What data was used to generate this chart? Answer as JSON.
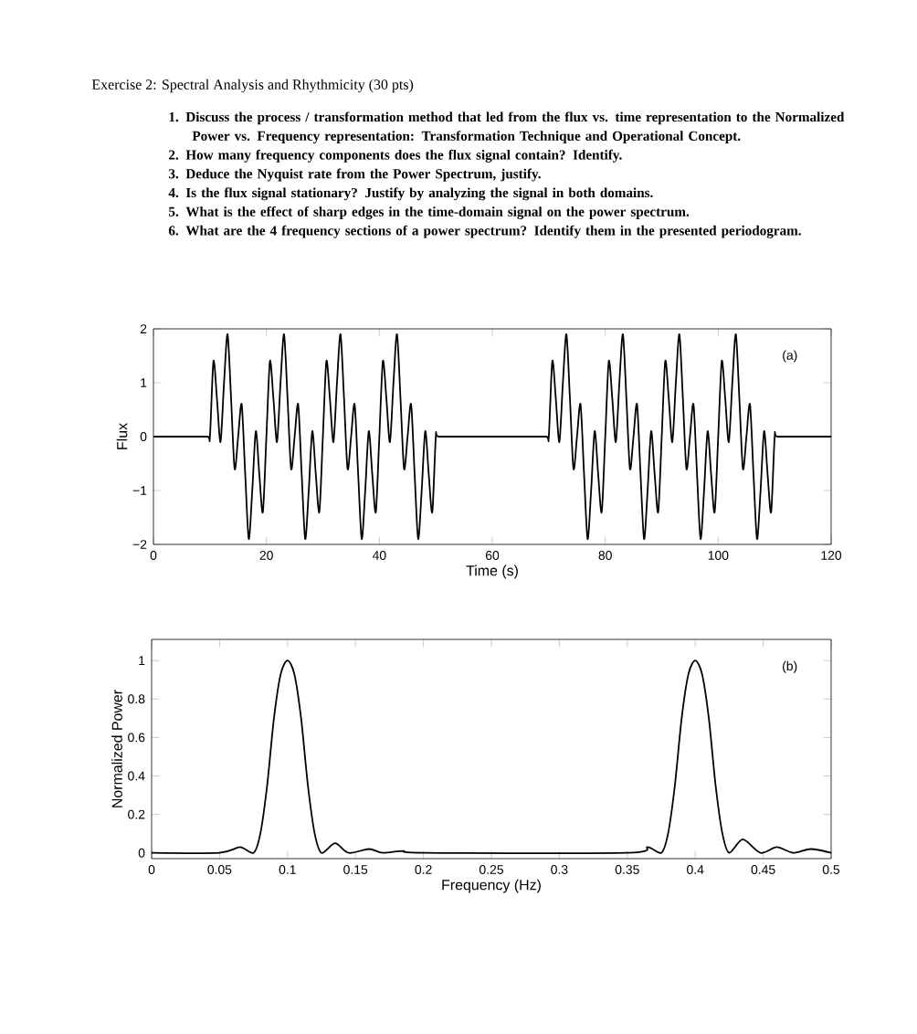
{
  "chart_data": [
    {
      "type": "line",
      "title": "Exercise 2: Spectral Analysis and Rhythmicity (30 pts)",
      "annotations": [
        "1. Discuss the process / transformation method that led from the flux vs. time representation to the Normalized Power vs. Frequency representation: Transformation Technique and Operational Concept.",
        "2. How many frequency components does the flux signal contain? Identify.",
        "3. Deduce the Nyquist rate from the Power Spectrum, justify.",
        "4. Is the flux signal stationary? Justify by analyzing the signal in both domains.",
        "5. What is the effect of sharp edges in the time-domain signal on the power spectrum.",
        "6. What are the 4 frequency sections of a power spectrum? Identify them in the presented periodogram.",
        "(a)"
      ],
      "xlabel": "Time (s)",
      "ylabel": "Flux",
      "color": "#000000",
      "xlim": [
        0,
        120
      ],
      "ylim": [
        -2,
        2
      ],
      "xticks": [
        0,
        20,
        40,
        60,
        80,
        100,
        120
      ],
      "yticks": [
        {
          "value": -2,
          "label": "−2"
        },
        {
          "value": -1,
          "label": "−1"
        },
        0,
        1,
        2
      ],
      "x": [
        0,
        5,
        9.5,
        10,
        10.625,
        11.25,
        11.875,
        12.5,
        13.125,
        13.75,
        14.375,
        15,
        15.625,
        16.25,
        16.875,
        17.5,
        18.125,
        18.75,
        19.375,
        20,
        20.625,
        21.25,
        21.875,
        22.5,
        23.125,
        23.75,
        24.375,
        25,
        25.625,
        26.25,
        26.875,
        27.5,
        28.125,
        28.75,
        29.375,
        30,
        30.625,
        31.25,
        31.875,
        32.5,
        33.125,
        33.75,
        34.375,
        35,
        35.625,
        36.25,
        36.875,
        37.5,
        38.125,
        38.75,
        39.375,
        40,
        40.625,
        41.25,
        41.875,
        42.5,
        43.125,
        43.75,
        44.375,
        45,
        45.625,
        46.25,
        46.875,
        47.5,
        48.125,
        48.75,
        49.375,
        50,
        50.5,
        55,
        60,
        65,
        69.5,
        70,
        70.625,
        71.25,
        71.875,
        72.5,
        73.125,
        73.75,
        74.375,
        75,
        75.625,
        76.25,
        76.875,
        77.5,
        78.125,
        78.75,
        79.375,
        80,
        80.625,
        81.25,
        81.875,
        82.5,
        83.125,
        83.75,
        84.375,
        85,
        85.625,
        86.25,
        86.875,
        87.5,
        88.125,
        88.75,
        89.375,
        90,
        90.625,
        91.25,
        91.875,
        92.5,
        93.125,
        93.75,
        94.375,
        95,
        95.625,
        96.25,
        96.875,
        97.5,
        98.125,
        98.75,
        99.375,
        100,
        100.625,
        101.25,
        101.875,
        102.5,
        103.125,
        103.75,
        104.375,
        105,
        105.625,
        106.25,
        106.875,
        107.5,
        108.125,
        108.75,
        109.375,
        110,
        110.5,
        115,
        120
      ],
      "values": [
        0,
        0,
        0,
        0,
        1.4,
        0.7,
        -0.1,
        1,
        1.9,
        0.7,
        -0.6,
        0,
        0.6,
        -0.7,
        -1.9,
        -1,
        0.1,
        -0.7,
        -1.4,
        0,
        1.4,
        0.7,
        -0.1,
        1,
        1.9,
        0.7,
        -0.6,
        0,
        0.6,
        -0.7,
        -1.9,
        -1,
        0.1,
        -0.7,
        -1.4,
        0,
        1.4,
        0.7,
        -0.1,
        1,
        1.9,
        0.7,
        -0.6,
        0,
        0.6,
        -0.7,
        -1.9,
        -1,
        0.1,
        -0.7,
        -1.4,
        0,
        1.4,
        0.7,
        -0.1,
        1,
        1.9,
        0.7,
        -0.6,
        0,
        0.6,
        -0.7,
        -1.9,
        -1,
        0.1,
        -0.7,
        -1.4,
        0,
        0,
        0,
        0,
        0,
        0,
        0,
        1.4,
        0.7,
        -0.1,
        1,
        1.9,
        0.7,
        -0.6,
        0,
        0.6,
        -0.7,
        -1.9,
        -1,
        0.1,
        -0.7,
        -1.4,
        0,
        1.4,
        0.7,
        -0.1,
        1,
        1.9,
        0.7,
        -0.6,
        0,
        0.6,
        -0.7,
        -1.9,
        -1,
        0.1,
        -0.7,
        -1.4,
        0,
        1.4,
        0.7,
        -0.1,
        1,
        1.9,
        0.7,
        -0.6,
        0,
        0.6,
        -0.7,
        -1.9,
        -1,
        0.1,
        -0.7,
        -1.4,
        0,
        1.4,
        0.7,
        -0.1,
        1,
        1.9,
        0.7,
        -0.6,
        0,
        0.6,
        -0.7,
        -1.9,
        -1,
        0.1,
        -0.7,
        -1.4,
        0,
        0,
        0,
        0
      ]
    },
    {
      "type": "line",
      "annotations": [
        "(b)"
      ],
      "xlabel": "Frequency (Hz)",
      "ylabel": "Normalized Power",
      "color": "#000000",
      "xlim": [
        0,
        0.5
      ],
      "ylim": [
        -0.03,
        1.11
      ],
      "xticks": [
        0,
        0.05,
        0.1,
        0.15,
        0.2,
        0.25,
        0.3,
        0.35,
        0.4,
        0.45,
        0.5
      ],
      "yticks": [
        0,
        0.2,
        0.4,
        0.6,
        0.8,
        1
      ],
      "x": [
        0,
        0.05,
        0.065,
        0.075,
        0.08,
        0.085,
        0.09,
        0.095,
        0.1,
        0.105,
        0.11,
        0.115,
        0.12,
        0.125,
        0.135,
        0.145,
        0.16,
        0.17,
        0.185,
        0.2,
        0.35,
        0.365,
        0.375,
        0.38,
        0.385,
        0.39,
        0.395,
        0.4,
        0.405,
        0.41,
        0.415,
        0.42,
        0.425,
        0.435,
        0.448,
        0.46,
        0.472,
        0.485,
        0.5
      ],
      "values": [
        0,
        0,
        0.03,
        0,
        0.1,
        0.35,
        0.7,
        0.93,
        1,
        0.93,
        0.7,
        0.35,
        0.1,
        0,
        0.05,
        0,
        0.02,
        0,
        0.01,
        0,
        0,
        0.03,
        0,
        0.1,
        0.35,
        0.7,
        0.93,
        1,
        0.93,
        0.7,
        0.35,
        0.1,
        0,
        0.07,
        0,
        0.03,
        0,
        0.02,
        0
      ]
    }
  ]
}
